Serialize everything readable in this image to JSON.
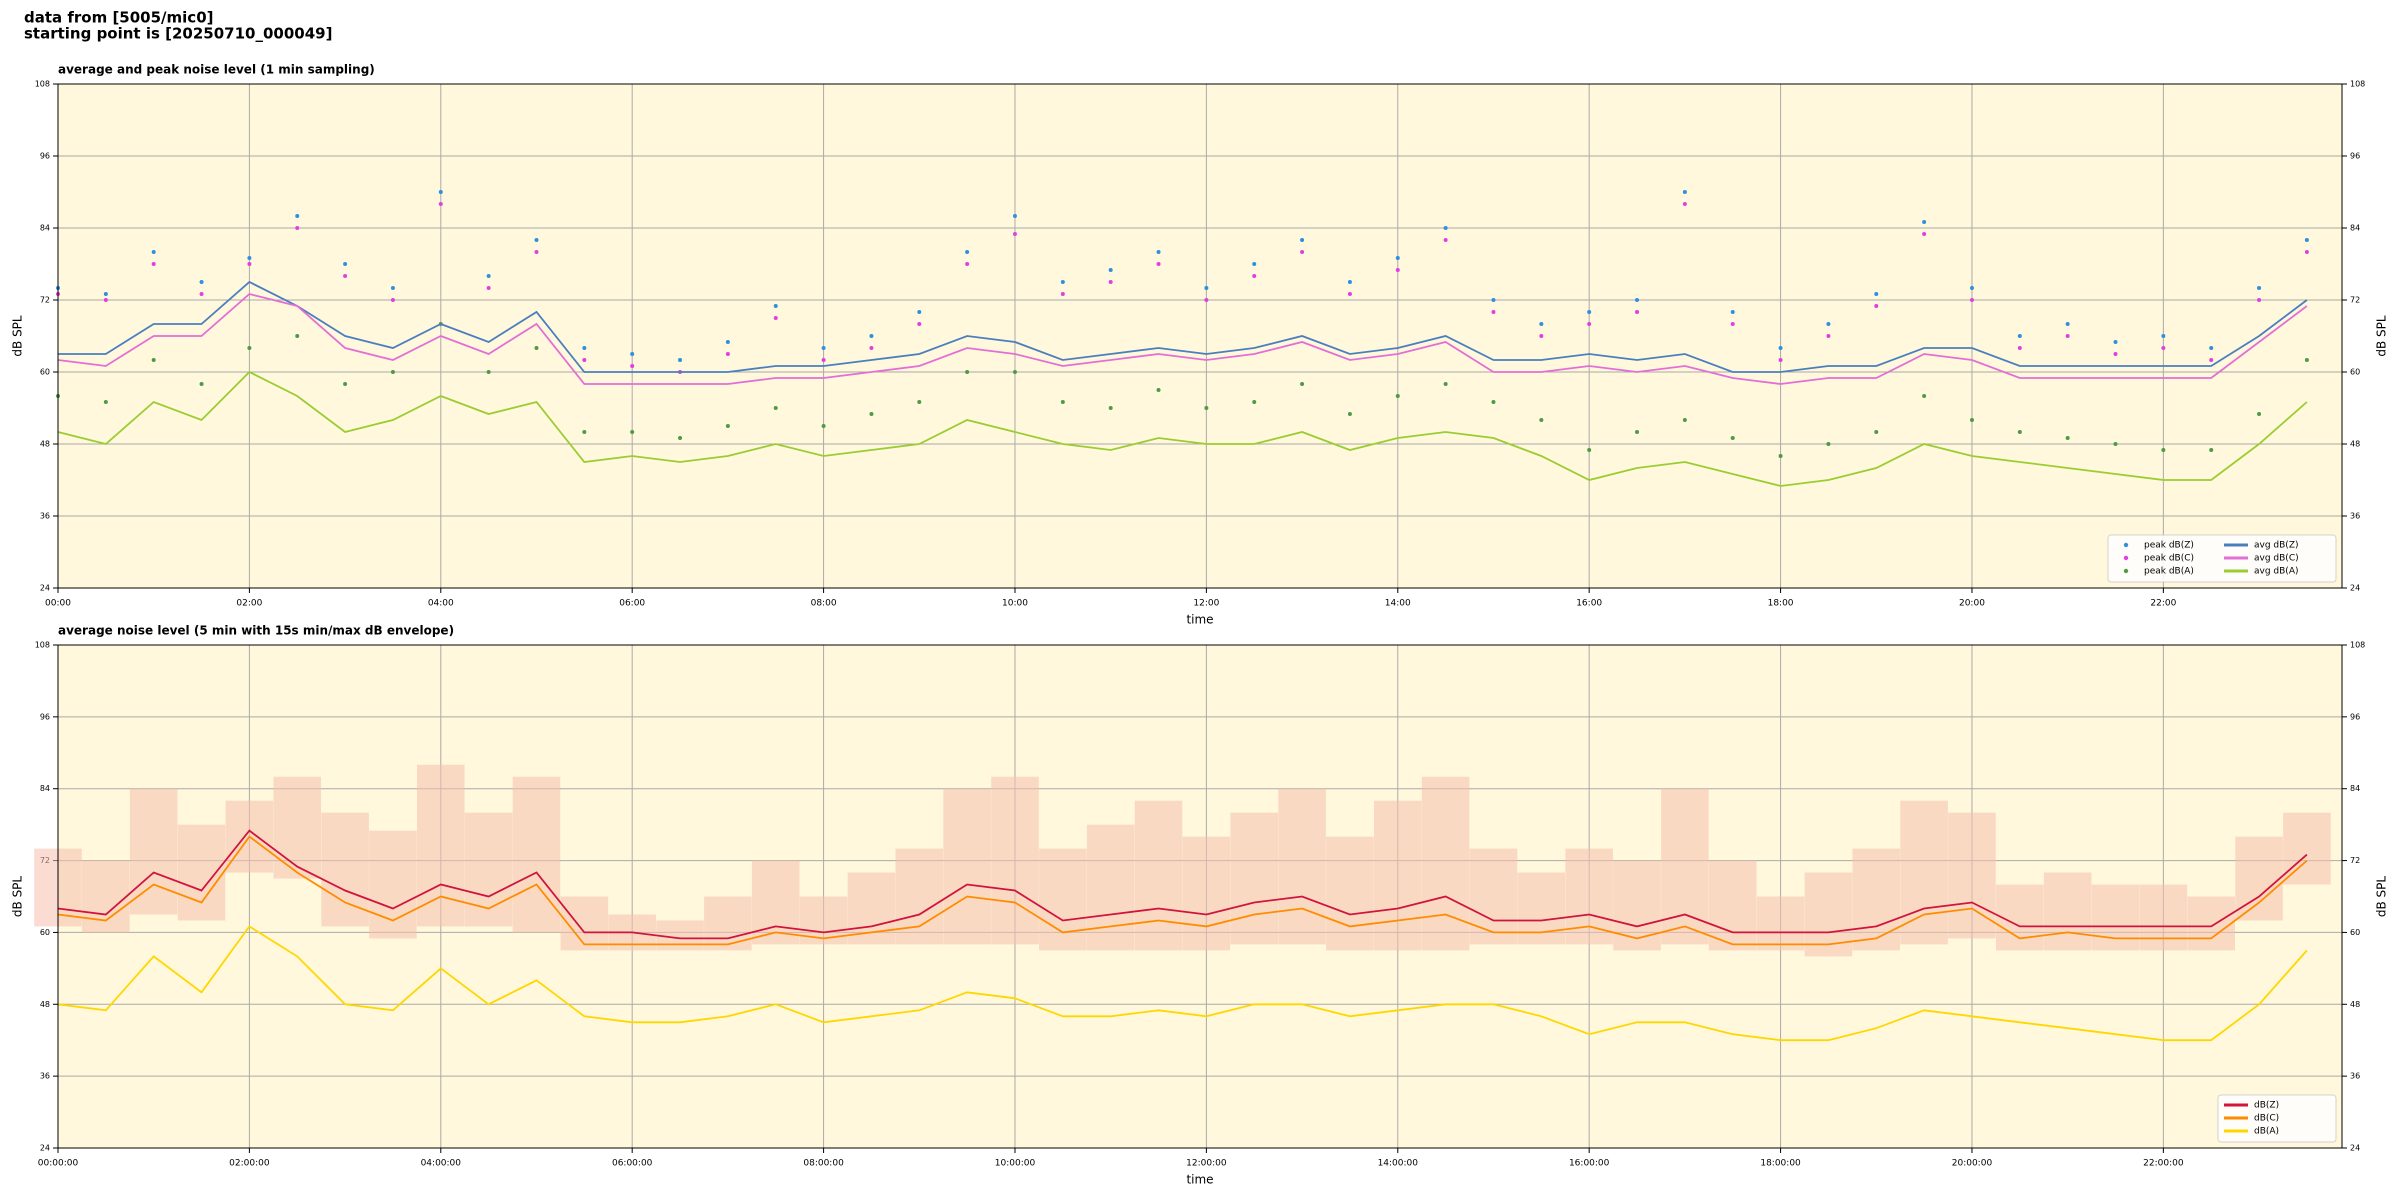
{
  "header": {
    "line1": "data from [5005/mic0]",
    "line2": "starting point is [20250710_000049]"
  },
  "chart_data": [
    {
      "type": "line",
      "title": "average and peak noise level (1 min sampling)",
      "xlabel": "time",
      "ylabel": "dB SPL",
      "x": [
        "00:00",
        "00:30",
        "01:00",
        "01:30",
        "02:00",
        "02:30",
        "03:00",
        "03:30",
        "04:00",
        "04:30",
        "05:00",
        "05:30",
        "06:00",
        "06:30",
        "07:00",
        "07:30",
        "08:00",
        "08:30",
        "09:00",
        "09:30",
        "10:00",
        "10:30",
        "11:00",
        "11:30",
        "12:00",
        "12:30",
        "13:00",
        "13:30",
        "14:00",
        "14:30",
        "15:00",
        "15:30",
        "16:00",
        "16:30",
        "17:00",
        "17:30",
        "18:00",
        "18:30",
        "19:00",
        "19:30",
        "20:00",
        "20:30",
        "21:00",
        "21:30",
        "22:00",
        "22:30",
        "23:00",
        "23:30"
      ],
      "xlim": [
        "00:00",
        "23:52"
      ],
      "xticks": [
        "00:00",
        "02:00",
        "04:00",
        "06:00",
        "08:00",
        "10:00",
        "12:00",
        "14:00",
        "16:00",
        "18:00",
        "20:00",
        "22:00"
      ],
      "ylim": [
        24,
        108
      ],
      "yticks": [
        24,
        36,
        48,
        60,
        72,
        84,
        96,
        108
      ],
      "grid": true,
      "legend": "lower right",
      "legend_columns": 2,
      "series": [
        {
          "name": "peak dB(Z)",
          "style": "dots",
          "color": "#2f8fe0",
          "values": [
            74,
            73,
            80,
            75,
            79,
            86,
            78,
            74,
            90,
            76,
            82,
            64,
            63,
            62,
            65,
            71,
            64,
            66,
            70,
            80,
            86,
            75,
            77,
            80,
            74,
            78,
            82,
            75,
            79,
            84,
            72,
            68,
            70,
            72,
            90,
            70,
            64,
            68,
            73,
            85,
            74,
            66,
            68,
            65,
            66,
            64,
            74,
            82
          ]
        },
        {
          "name": "peak dB(C)",
          "style": "dots",
          "color": "#e040e0",
          "values": [
            73,
            72,
            78,
            73,
            78,
            84,
            76,
            72,
            88,
            74,
            80,
            62,
            61,
            60,
            63,
            69,
            62,
            64,
            68,
            78,
            83,
            73,
            75,
            78,
            72,
            76,
            80,
            73,
            77,
            82,
            70,
            66,
            68,
            70,
            88,
            68,
            62,
            66,
            71,
            83,
            72,
            64,
            66,
            63,
            64,
            62,
            72,
            80
          ]
        },
        {
          "name": "peak dB(A)",
          "style": "dots",
          "color": "#4f9a48",
          "values": [
            56,
            55,
            62,
            58,
            64,
            66,
            58,
            60,
            68,
            60,
            64,
            50,
            50,
            49,
            51,
            54,
            51,
            53,
            55,
            60,
            60,
            55,
            54,
            57,
            54,
            55,
            58,
            53,
            56,
            58,
            55,
            52,
            47,
            50,
            52,
            49,
            46,
            48,
            50,
            56,
            52,
            50,
            49,
            48,
            47,
            47,
            53,
            62
          ]
        },
        {
          "name": "avg dB(Z)",
          "style": "line",
          "color": "#4a7fbf",
          "values": [
            63,
            63,
            68,
            68,
            75,
            71,
            66,
            64,
            68,
            65,
            70,
            60,
            60,
            60,
            60,
            61,
            61,
            62,
            63,
            66,
            65,
            62,
            63,
            64,
            63,
            64,
            66,
            63,
            64,
            66,
            62,
            62,
            63,
            62,
            63,
            60,
            60,
            61,
            61,
            64,
            64,
            61,
            61,
            61,
            61,
            61,
            66,
            72
          ]
        },
        {
          "name": "avg dB(C)",
          "style": "line",
          "color": "#e26fd6",
          "values": [
            62,
            61,
            66,
            66,
            73,
            71,
            64,
            62,
            66,
            63,
            68,
            58,
            58,
            58,
            58,
            59,
            59,
            60,
            61,
            64,
            63,
            61,
            62,
            63,
            62,
            63,
            65,
            62,
            63,
            65,
            60,
            60,
            61,
            60,
            61,
            59,
            58,
            59,
            59,
            63,
            62,
            59,
            59,
            59,
            59,
            59,
            65,
            71
          ]
        },
        {
          "name": "avg dB(A)",
          "style": "line",
          "color": "#9acd32",
          "values": [
            50,
            48,
            55,
            52,
            60,
            56,
            50,
            52,
            56,
            53,
            55,
            45,
            46,
            45,
            46,
            48,
            46,
            47,
            48,
            52,
            50,
            48,
            47,
            49,
            48,
            48,
            50,
            47,
            49,
            50,
            49,
            46,
            42,
            44,
            45,
            43,
            41,
            42,
            44,
            48,
            46,
            45,
            44,
            43,
            42,
            42,
            48,
            55
          ]
        }
      ]
    },
    {
      "type": "line",
      "title": "average noise level (5 min with 15s min/max dB envelope)",
      "xlabel": "time",
      "ylabel": "dB SPL",
      "x": [
        "00:00:00",
        "00:30:00",
        "01:00:00",
        "01:30:00",
        "02:00:00",
        "02:30:00",
        "03:00:00",
        "03:30:00",
        "04:00:00",
        "04:30:00",
        "05:00:00",
        "05:30:00",
        "06:00:00",
        "06:30:00",
        "07:00:00",
        "07:30:00",
        "08:00:00",
        "08:30:00",
        "09:00:00",
        "09:30:00",
        "10:00:00",
        "10:30:00",
        "11:00:00",
        "11:30:00",
        "12:00:00",
        "12:30:00",
        "13:00:00",
        "13:30:00",
        "14:00:00",
        "14:30:00",
        "15:00:00",
        "15:30:00",
        "16:00:00",
        "16:30:00",
        "17:00:00",
        "17:30:00",
        "18:00:00",
        "18:30:00",
        "19:00:00",
        "19:30:00",
        "20:00:00",
        "20:30:00",
        "21:00:00",
        "21:30:00",
        "22:00:00",
        "22:30:00",
        "23:00:00",
        "23:30:00"
      ],
      "xlim": [
        "00:00:00",
        "23:52:00"
      ],
      "xticks": [
        "00:00:00",
        "02:00:00",
        "04:00:00",
        "06:00:00",
        "08:00:00",
        "10:00:00",
        "12:00:00",
        "14:00:00",
        "16:00:00",
        "18:00:00",
        "20:00:00",
        "22:00:00"
      ],
      "ylim": [
        24,
        108
      ],
      "yticks": [
        24,
        36,
        48,
        60,
        72,
        84,
        96,
        108
      ],
      "grid": true,
      "legend": "lower right",
      "legend_columns": 1,
      "envelope": {
        "color": "#f6bfae",
        "min": [
          61,
          60,
          63,
          62,
          70,
          69,
          61,
          59,
          61,
          61,
          60,
          57,
          57,
          57,
          57,
          58,
          58,
          58,
          58,
          58,
          58,
          57,
          57,
          57,
          57,
          58,
          58,
          57,
          57,
          57,
          58,
          58,
          58,
          57,
          58,
          57,
          57,
          56,
          57,
          58,
          59,
          57,
          57,
          57,
          57,
          57,
          62,
          68
        ],
        "max": [
          74,
          72,
          84,
          78,
          82,
          86,
          80,
          77,
          88,
          80,
          86,
          66,
          63,
          62,
          66,
          72,
          66,
          70,
          74,
          84,
          86,
          74,
          78,
          82,
          76,
          80,
          84,
          76,
          82,
          86,
          74,
          70,
          74,
          72,
          84,
          72,
          66,
          70,
          74,
          82,
          80,
          68,
          70,
          68,
          68,
          66,
          76,
          80
        ]
      },
      "series": [
        {
          "name": "dB(Z)",
          "style": "line",
          "color": "#d0143c",
          "values": [
            64,
            63,
            70,
            67,
            77,
            71,
            67,
            64,
            68,
            66,
            70,
            60,
            60,
            59,
            59,
            61,
            60,
            61,
            63,
            68,
            67,
            62,
            63,
            64,
            63,
            65,
            66,
            63,
            64,
            66,
            62,
            62,
            63,
            61,
            63,
            60,
            60,
            60,
            61,
            64,
            65,
            61,
            61,
            61,
            61,
            61,
            66,
            73
          ]
        },
        {
          "name": "dB(C)",
          "style": "line",
          "color": "#ff8c00",
          "values": [
            63,
            62,
            68,
            65,
            76,
            70,
            65,
            62,
            66,
            64,
            68,
            58,
            58,
            58,
            58,
            60,
            59,
            60,
            61,
            66,
            65,
            60,
            61,
            62,
            61,
            63,
            64,
            61,
            62,
            63,
            60,
            60,
            61,
            59,
            61,
            58,
            58,
            58,
            59,
            63,
            64,
            59,
            60,
            59,
            59,
            59,
            65,
            72
          ]
        },
        {
          "name": "dB(A)",
          "style": "line",
          "color": "#ffd700",
          "values": [
            48,
            47,
            56,
            50,
            61,
            56,
            48,
            47,
            54,
            48,
            52,
            46,
            45,
            45,
            46,
            48,
            45,
            46,
            47,
            50,
            49,
            46,
            46,
            47,
            46,
            48,
            48,
            46,
            47,
            48,
            48,
            46,
            43,
            45,
            45,
            43,
            42,
            42,
            44,
            47,
            46,
            45,
            44,
            43,
            42,
            42,
            48,
            57
          ]
        }
      ]
    }
  ]
}
